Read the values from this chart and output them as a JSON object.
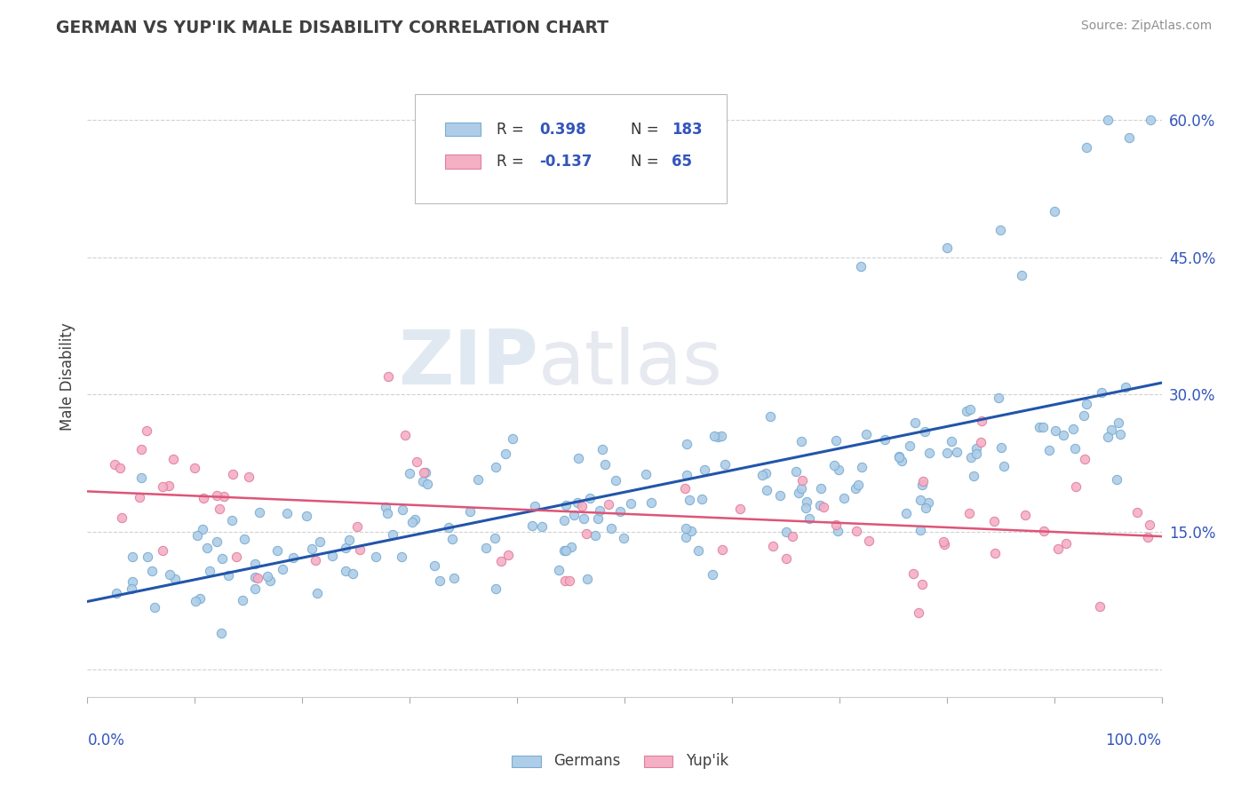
{
  "title": "GERMAN VS YUP'IK MALE DISABILITY CORRELATION CHART",
  "source": "Source: ZipAtlas.com",
  "ylabel": "Male Disability",
  "german_R": 0.398,
  "german_N": 183,
  "yupik_R": -0.137,
  "yupik_N": 65,
  "german_color": "#aecde8",
  "yupik_color": "#f4afc4",
  "german_edge": "#7aadd0",
  "yupik_edge": "#e080a0",
  "line_german_color": "#2255aa",
  "line_yupik_color": "#dd5577",
  "title_color": "#404040",
  "source_color": "#909090",
  "legend_r_color": "#3355bb",
  "background_color": "#ffffff",
  "grid_color": "#cccccc",
  "legend_label_german": "Germans",
  "legend_label_yupik": "Yup'ik",
  "watermark_zip": "ZIP",
  "watermark_atlas": "atlas",
  "xlim": [
    0.0,
    1.0
  ],
  "ylim": [
    -0.03,
    0.67
  ],
  "yticks": [
    0.0,
    0.15,
    0.3,
    0.45,
    0.6
  ],
  "ytick_labels": [
    "",
    "15.0%",
    "30.0%",
    "45.0%",
    "60.0%"
  ]
}
